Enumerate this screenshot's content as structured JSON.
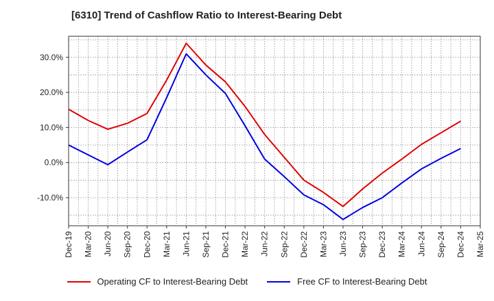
{
  "chart_data": {
    "type": "line",
    "title": "[6310]  Trend of Cashflow Ratio to Interest-Bearing Debt",
    "xlabel": "",
    "ylabel": "",
    "x": [
      "Dec-19",
      "Mar-20",
      "Jun-20",
      "Sep-20",
      "Dec-20",
      "Mar-21",
      "Jun-21",
      "Sep-21",
      "Dec-21",
      "Mar-22",
      "Jun-22",
      "Sep-22",
      "Dec-22",
      "Mar-23",
      "Jun-23",
      "Sep-23",
      "Dec-23",
      "Mar-24",
      "Jun-24",
      "Sep-24",
      "Dec-24",
      "Mar-25"
    ],
    "y_ticks": [
      30,
      20,
      10,
      0,
      -10
    ],
    "y_tick_labels": [
      "30.0%",
      "20.0%",
      "10.0%",
      "0.0%",
      "-10.0%"
    ],
    "ylim": [
      -18,
      36
    ],
    "grid": true,
    "legend_position": "bottom",
    "series": [
      {
        "name": "Operating CF to Interest-Bearing Debt",
        "color": "#e00000",
        "values": [
          15.2,
          12.0,
          9.5,
          11.2,
          14.0,
          23.5,
          34.0,
          27.8,
          23.0,
          16.0,
          8.0,
          1.5,
          -5.0,
          -8.5,
          -12.5,
          -7.5,
          -3.0,
          1.0,
          5.2,
          8.5,
          11.8,
          null
        ]
      },
      {
        "name": "Free CF to Interest-Bearing Debt",
        "color": "#0000e0",
        "values": [
          5.0,
          2.2,
          -0.6,
          3.0,
          6.5,
          18.5,
          31.0,
          25.0,
          19.7,
          10.5,
          1.0,
          -4.0,
          -9.2,
          -12.0,
          -16.2,
          -12.8,
          -10.0,
          -5.8,
          -1.8,
          1.2,
          4.0,
          null
        ]
      }
    ]
  }
}
